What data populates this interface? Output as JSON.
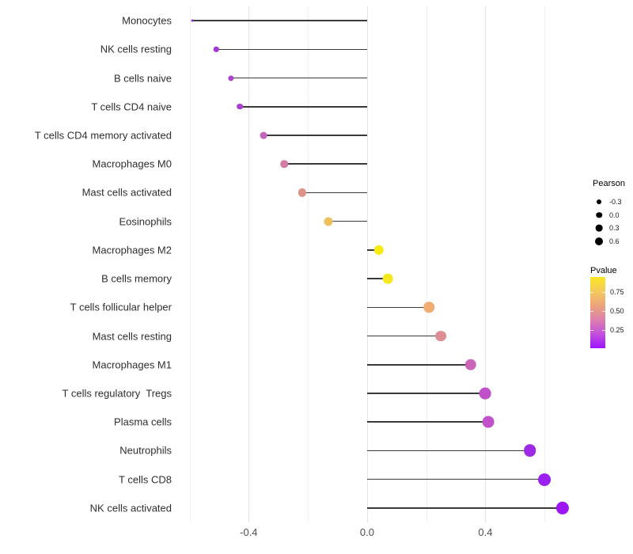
{
  "chart_data": {
    "type": "lollipop",
    "title": "",
    "xlabel": "",
    "ylabel": "",
    "xlim": [
      -0.647,
      0.693
    ],
    "x_ticks": [
      {
        "value": -0.4,
        "label": "-0.4"
      },
      {
        "value": 0.0,
        "label": "0.0"
      },
      {
        "value": 0.4,
        "label": "0.4"
      }
    ],
    "major_gridlines": [
      -0.4,
      0.0,
      0.4
    ],
    "minor_gridlines": [
      -0.6,
      -0.2,
      0.2,
      0.6
    ],
    "grid": "vertical-only",
    "size_encoding": "Pearson",
    "color_encoding": "Pvalue",
    "rows": [
      {
        "label": "Monocytes",
        "pearson": -0.59,
        "dot_color": "#9130d6"
      },
      {
        "label": "NK cells resting",
        "pearson": -0.51,
        "dot_color": "#a439d6"
      },
      {
        "label": "B cells naive",
        "pearson": -0.46,
        "dot_color": "#ae43cf"
      },
      {
        "label": "T cells CD4 naive",
        "pearson": -0.43,
        "dot_color": "#aa3cd2"
      },
      {
        "label": "T cells CD4 memory activated",
        "pearson": -0.35,
        "dot_color": "#c566bd"
      },
      {
        "label": "Macrophages M0",
        "pearson": -0.28,
        "dot_color": "#d27ba3"
      },
      {
        "label": "Mast cells activated",
        "pearson": -0.22,
        "dot_color": "#dd9288"
      },
      {
        "label": "Eosinophils",
        "pearson": -0.13,
        "dot_color": "#eec05c"
      },
      {
        "label": "Macrophages M2",
        "pearson": 0.04,
        "dot_color": "#f6ec0f"
      },
      {
        "label": "B cells memory",
        "pearson": 0.07,
        "dot_color": "#f5e81e"
      },
      {
        "label": "T cells follicular helper",
        "pearson": 0.21,
        "dot_color": "#efad72"
      },
      {
        "label": "Mast cells resting",
        "pearson": 0.25,
        "dot_color": "#dc8e94"
      },
      {
        "label": "Macrophages M1",
        "pearson": 0.35,
        "dot_color": "#c966b8"
      },
      {
        "label": "T cells regulatory  Tregs",
        "pearson": 0.4,
        "dot_color": "#c050ca"
      },
      {
        "label": "Plasma cells",
        "pearson": 0.41,
        "dot_color": "#c152cb"
      },
      {
        "label": "Neutrophils",
        "pearson": 0.55,
        "dot_color": "#9d2be6"
      },
      {
        "label": "T cells CD8",
        "pearson": 0.6,
        "dot_color": "#9a1ff0"
      },
      {
        "label": "NK cells activated",
        "pearson": 0.66,
        "dot_color": "#9c15f2"
      }
    ],
    "stem_color": "#3a3a3a"
  },
  "legend_pearson": {
    "title": "Pearson",
    "items": [
      {
        "label": "-0.3",
        "diameter": 6
      },
      {
        "label": "0.0",
        "diameter": 7.5
      },
      {
        "label": "0.3",
        "diameter": 8.7
      },
      {
        "label": "0.6",
        "diameter": 10
      }
    ]
  },
  "legend_pvalue": {
    "title": "Pvalue",
    "ticks": [
      {
        "label": "0.75",
        "pos": 0.212
      },
      {
        "label": "0.50",
        "pos": 0.48
      },
      {
        "label": "0.25",
        "pos": 0.749
      }
    ],
    "gradient_top_to_bottom": [
      "#fbe723",
      "#f4c65f",
      "#eba07e",
      "#dd80ad",
      "#c450dd",
      "#9c13fb"
    ]
  }
}
